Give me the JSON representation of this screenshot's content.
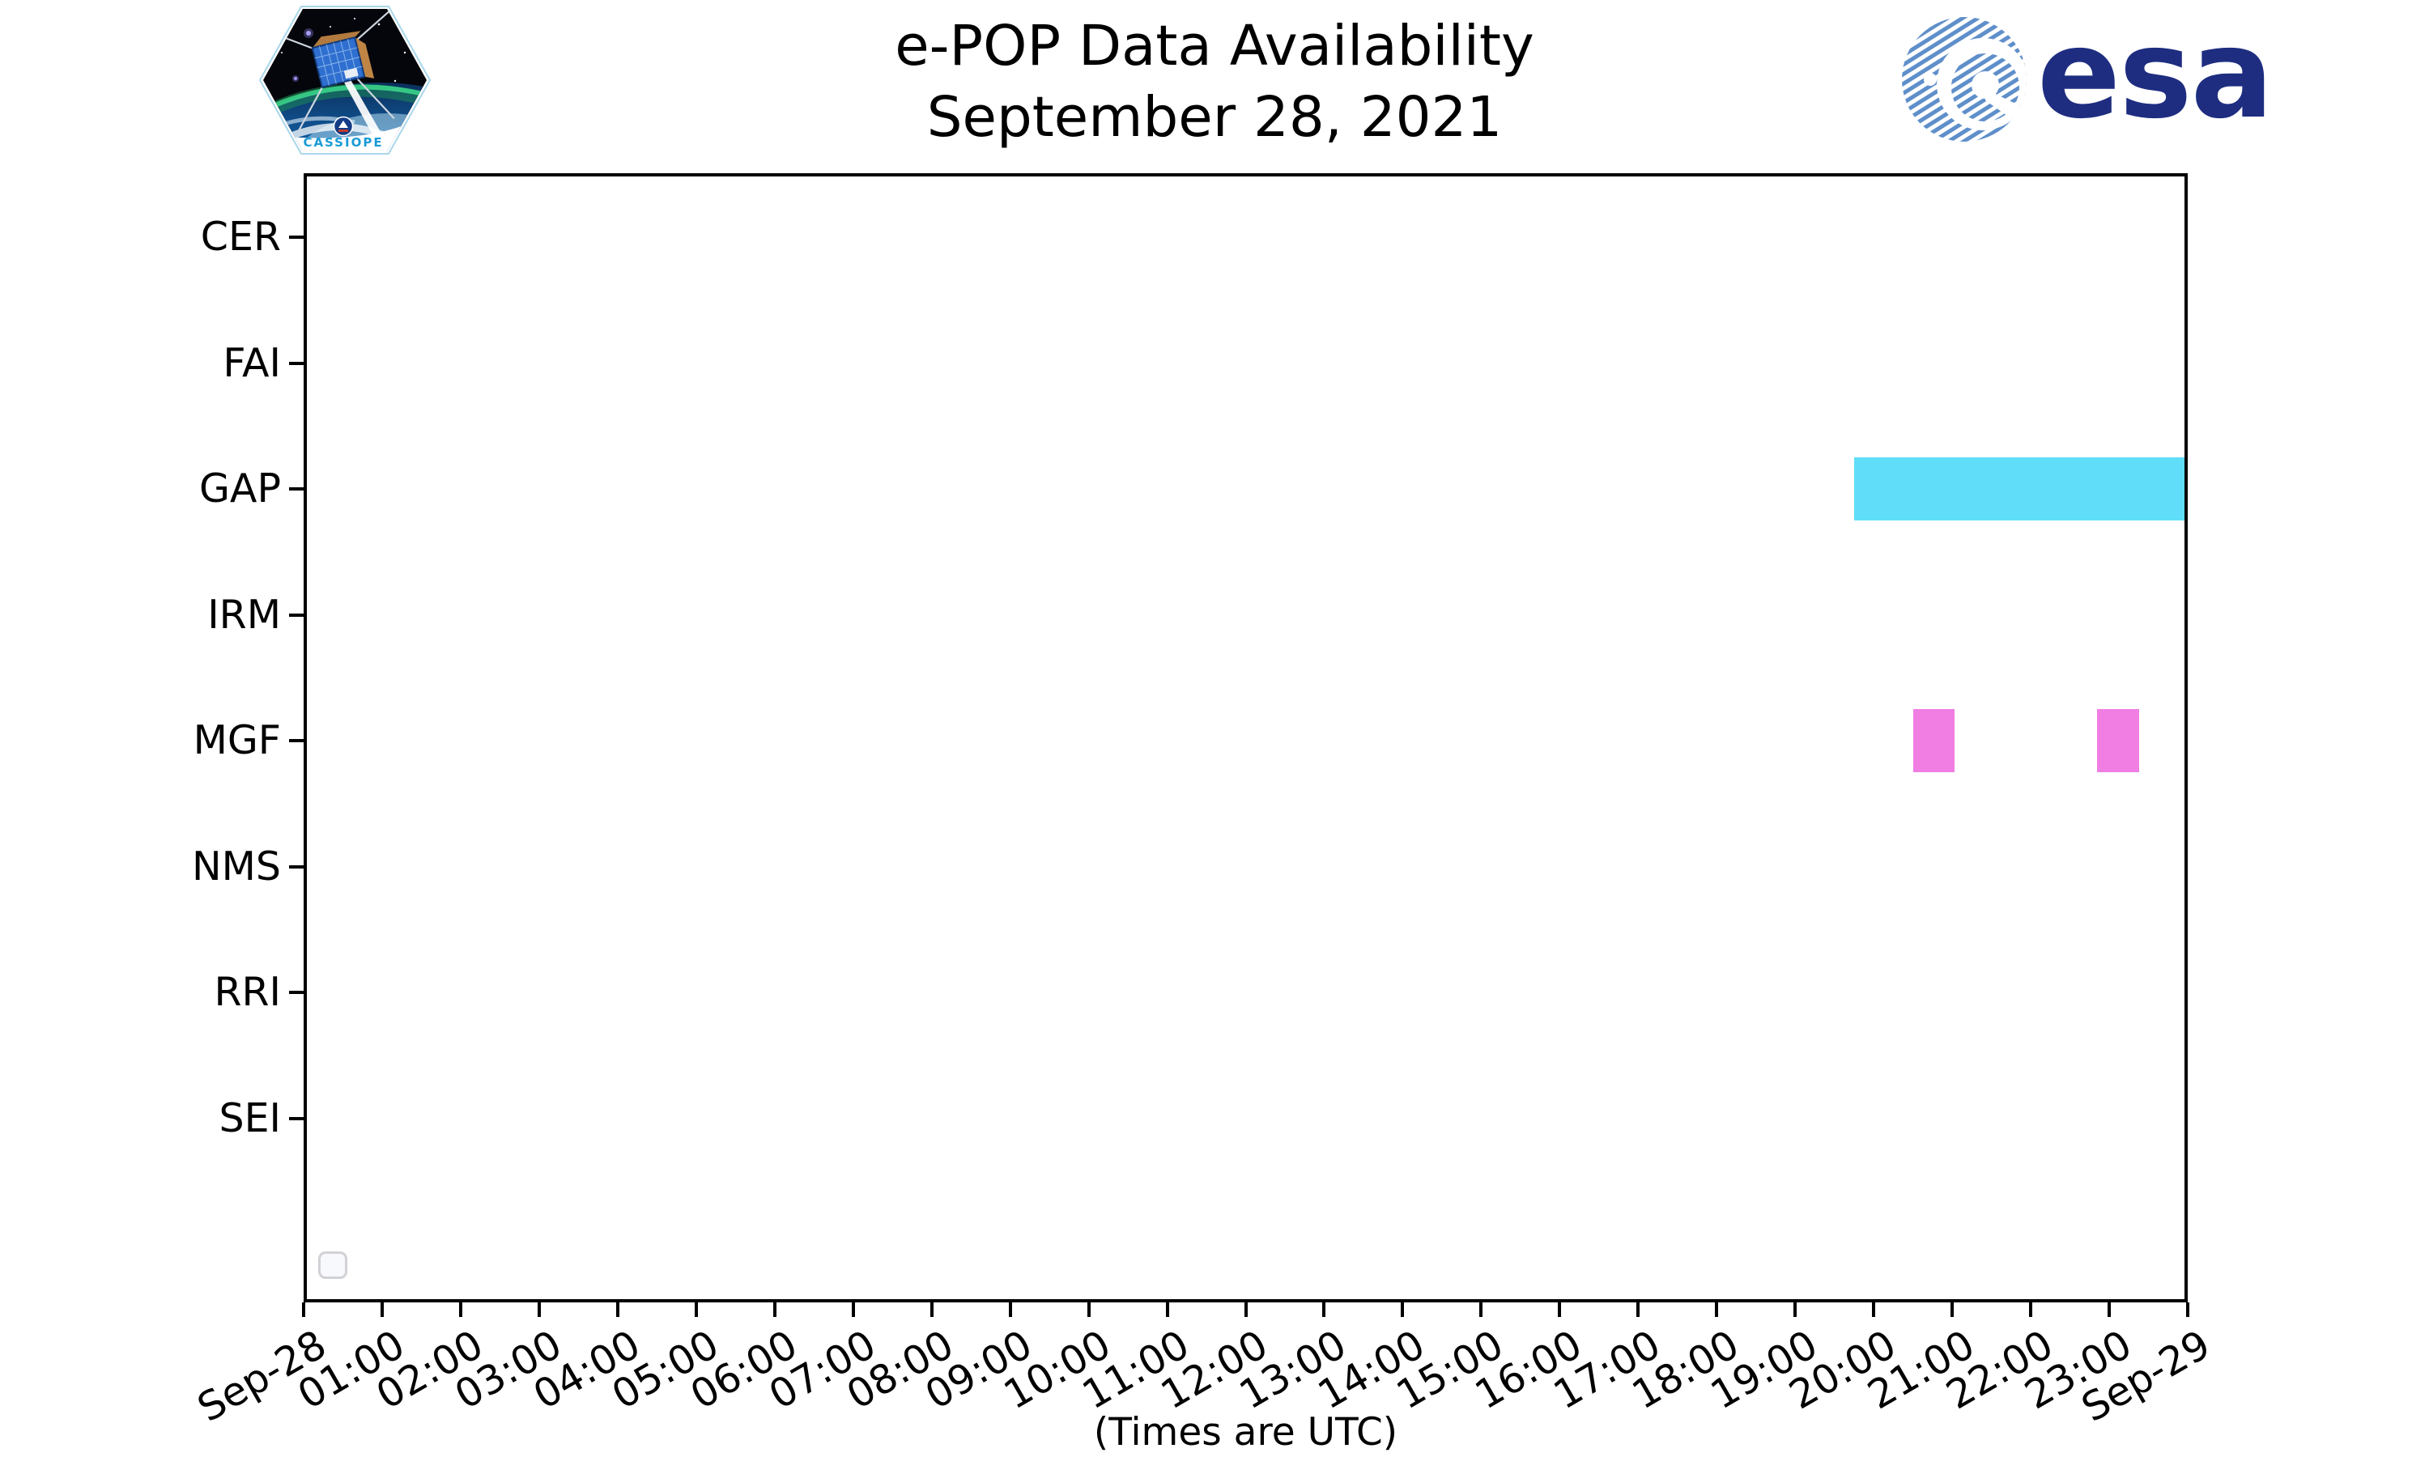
{
  "logos": {
    "cassiope": {
      "label": "CASSIOPE"
    },
    "esa": {
      "label": "esa"
    }
  },
  "chart_data": {
    "type": "bar",
    "subtype": "horizontal-broken-bar-availability-timeline",
    "title": "e-POP Data Availability",
    "subtitle": "September 28, 2021",
    "xlabel": "(Times are UTC)",
    "ylabel": "",
    "categories": [
      "CER",
      "FAI",
      "GAP",
      "IRM",
      "MGF",
      "NMS",
      "RRI",
      "SEI"
    ],
    "x_ticks": [
      "Sep-28",
      "01:00",
      "02:00",
      "03:00",
      "04:00",
      "05:00",
      "06:00",
      "07:00",
      "08:00",
      "09:00",
      "10:00",
      "11:00",
      "12:00",
      "13:00",
      "14:00",
      "15:00",
      "16:00",
      "17:00",
      "18:00",
      "19:00",
      "20:00",
      "21:00",
      "22:00",
      "23:00",
      "Sep-29"
    ],
    "xlim_hours": [
      0,
      24
    ],
    "grid": false,
    "legend": {
      "visible": true,
      "entries": [],
      "position": "lower-left"
    },
    "series": [
      {
        "name": "GAP",
        "color": "#60DEF9",
        "segments": [
          {
            "start": "19:45",
            "end": "24:00",
            "start_hour": 19.75,
            "end_hour": 24.0
          }
        ]
      },
      {
        "name": "MGF",
        "color": "#F07EE3",
        "segments": [
          {
            "start": "20:30",
            "end": "21:02",
            "start_hour": 20.5,
            "end_hour": 21.03
          },
          {
            "start": "22:51",
            "end": "23:23",
            "start_hour": 22.85,
            "end_hour": 23.38
          }
        ]
      }
    ],
    "instruments_with_no_data": [
      "CER",
      "FAI",
      "IRM",
      "NMS",
      "RRI",
      "SEI"
    ]
  },
  "colors": {
    "background": "#ffffff",
    "axis": "#000000",
    "gap_bar": "#60DEF9",
    "mgf_bar": "#F07EE3",
    "esa_text": "#1E2D80",
    "esa_stripes": "#5F8FCA",
    "cassiope_wordmark": "#1A9BD7"
  }
}
